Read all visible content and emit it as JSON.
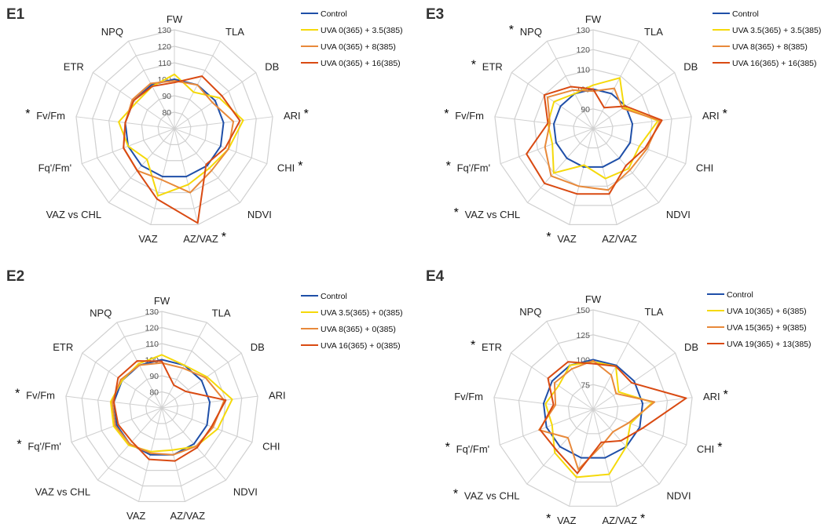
{
  "colors": {
    "grid": "#d0d0d0",
    "series": [
      "#1f4fa8",
      "#f5d90a",
      "#e8893a",
      "#d94a12"
    ]
  },
  "axes": [
    "FW",
    "TLA",
    "DB",
    "ARI",
    "CHI",
    "NDVI",
    "AZ/VAZ",
    "VAZ",
    "VAZ vs CHL",
    "Fq'/Fm'",
    "Fv/Fm",
    "ETR",
    "NPQ"
  ],
  "chart_data": [
    {
      "type": "radar",
      "title": "E1",
      "ticks": [
        80,
        90,
        100,
        110,
        120,
        130
      ],
      "rmin": 70,
      "rmax": 130,
      "starred": [
        "ARI",
        "CHI",
        "AZ/VAZ",
        "Fv/Fm"
      ],
      "series": [
        {
          "name": "Control",
          "values": [
            100,
            100,
            100,
            100,
            100,
            100,
            100,
            100,
            100,
            100,
            100,
            100,
            100
          ]
        },
        {
          "name": "UVA  0(365) + 3.5(385)",
          "values": [
            103,
            95,
            103,
            112,
            105,
            102,
            105,
            112,
            95,
            100,
            104,
            98,
            99
          ]
        },
        {
          "name": "UVA  0(365) + 8(385)",
          "values": [
            99,
            100,
            98,
            106,
            105,
            104,
            110,
            102,
            104,
            103,
            100,
            101,
            101
          ]
        },
        {
          "name": "UVA  0(365) + 16(385)",
          "values": [
            98,
            106,
            105,
            110,
            103,
            99,
            129,
            114,
            104,
            103,
            100,
            100,
            99
          ]
        }
      ]
    },
    {
      "type": "radar",
      "title": "E3",
      "ticks": [
        90,
        100,
        110,
        120,
        130
      ],
      "rmin": 80,
      "rmax": 130,
      "starred": [
        "NPQ",
        "ETR",
        "Fv/Fm",
        "ARI",
        "Fq'/Fm'",
        "VAZ vs CHL",
        "VAZ"
      ],
      "series": [
        {
          "name": "Control",
          "values": [
            100,
            100,
            100,
            100,
            100,
            100,
            100,
            100,
            100,
            100,
            100,
            100,
            100
          ]
        },
        {
          "name": "UVA  3.5(365) + 3.5(385)",
          "values": [
            102,
            109,
            99,
            113,
            105,
            107,
            106,
            99,
            110,
            102,
            103,
            104,
            100
          ]
        },
        {
          "name": "UVA  8(365) + 8(385)",
          "values": [
            99,
            103,
            98,
            114,
            109,
            108,
            112,
            110,
            112,
            106,
            102,
            108,
            102
          ]
        },
        {
          "name": "UVA  16(365) + 16(385)",
          "values": [
            100,
            92,
            100,
            115,
            108,
            105,
            114,
            114,
            117,
            116,
            103,
            110,
            104
          ]
        }
      ]
    },
    {
      "type": "radar",
      "title": "E2",
      "ticks": [
        80,
        90,
        100,
        110,
        120,
        130
      ],
      "rmin": 70,
      "rmax": 130,
      "starred": [
        "Fv/Fm",
        "Fq'/Fm'"
      ],
      "series": [
        {
          "name": "Control",
          "values": [
            100,
            100,
            100,
            100,
            100,
            100,
            100,
            100,
            100,
            100,
            100,
            100,
            100
          ]
        },
        {
          "name": "UVA  3.5(365) + 0(385)",
          "values": [
            103,
            100,
            104,
            114,
            107,
            102,
            97,
            98,
            101,
            102,
            102,
            100,
            101
          ]
        },
        {
          "name": "UVA  8(365) + 0(385)",
          "values": [
            98,
            98,
            103,
            109,
            104,
            102,
            100,
            99,
            100,
            101,
            101,
            101,
            100
          ]
        },
        {
          "name": "UVA  16(365) + 0(385)",
          "values": [
            99,
            86,
            88,
            110,
            103,
            103,
            104,
            103,
            98,
            99,
            100,
            103,
            103
          ]
        }
      ]
    },
    {
      "type": "radar",
      "title": "E4",
      "ticks": [
        75,
        100,
        125,
        150
      ],
      "rmin": 50,
      "rmax": 150,
      "starred": [
        "ETR",
        "ARI",
        "CHI",
        "Fq'/Fm'",
        "VAZ vs CHL",
        "VAZ",
        "AZ/VAZ"
      ],
      "series": [
        {
          "name": "Control",
          "values": [
            100,
            100,
            100,
            100,
            100,
            100,
            100,
            100,
            100,
            100,
            100,
            100,
            100
          ]
        },
        {
          "name": "UVA  10(365) + 6(385)",
          "values": [
            98,
            99,
            81,
            110,
            90,
            100,
            117,
            120,
            108,
            94,
            98,
            92,
            100
          ]
        },
        {
          "name": "UVA  15(365) + 9(385)",
          "values": [
            99,
            89,
            78,
            112,
            88,
            80,
            87,
            112,
            88,
            108,
            88,
            97,
            96
          ]
        },
        {
          "name": "UVA  19(365) + 13(385)",
          "values": [
            96,
            99,
            97,
            144,
            103,
            92,
            84,
            116,
            105,
            107,
            90,
            105,
            104
          ]
        }
      ]
    }
  ]
}
